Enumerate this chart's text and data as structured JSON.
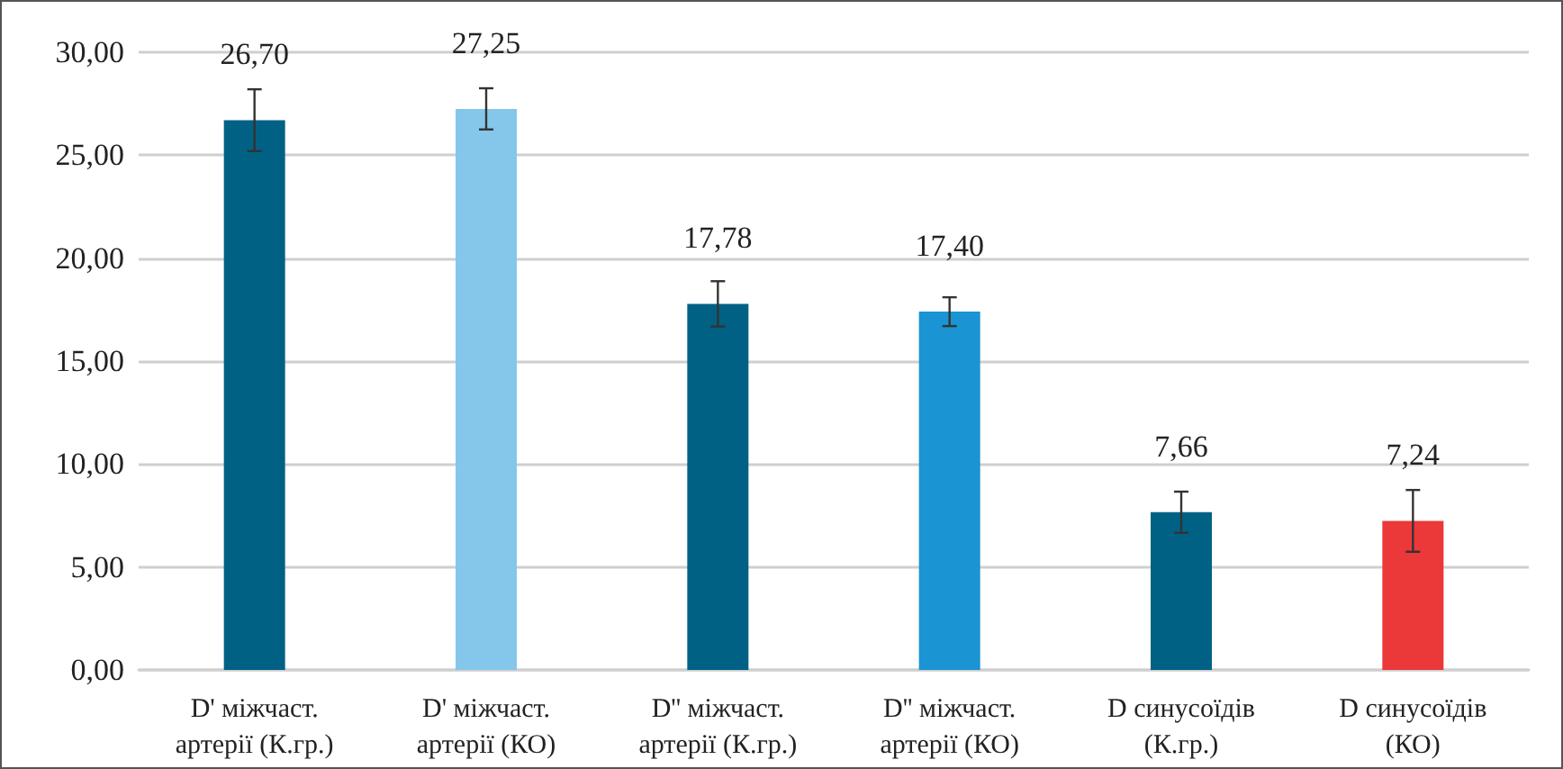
{
  "chart_data": {
    "type": "bar",
    "categories": [
      "D' міжчаст.\nартерії (К.гр.)",
      "D' міжчаст.\nартерії (КО)",
      "D'' міжчаст.\nартерії (К.гр.)",
      "D'' міжчаст.\nартерії (КО)",
      "D синусоїдів\n(К.гр.)",
      "D синусоїдів\n(КО)"
    ],
    "values": [
      26.7,
      27.25,
      17.78,
      17.4,
      7.66,
      7.24
    ],
    "value_labels": [
      "26,70",
      "27,25",
      "17,78",
      "17,40",
      "7,66",
      "7,24"
    ],
    "colors": [
      "#006184",
      "#85c6eb",
      "#006184",
      "#1a94d2",
      "#006184",
      "#eb3838"
    ],
    "errors": [
      1.5,
      1.0,
      1.1,
      0.7,
      1.0,
      1.5
    ],
    "ylim": [
      0,
      30
    ],
    "yticks": [
      {
        "value": 0,
        "label": "0,00"
      },
      {
        "value": 5,
        "label": "5,00"
      },
      {
        "value": 10,
        "label": "10,00"
      },
      {
        "value": 15,
        "label": "15,00"
      },
      {
        "value": 20,
        "label": "20,00"
      },
      {
        "value": 25,
        "label": "25,00"
      },
      {
        "value": 30,
        "label": "30,00"
      }
    ],
    "grid": "y"
  }
}
